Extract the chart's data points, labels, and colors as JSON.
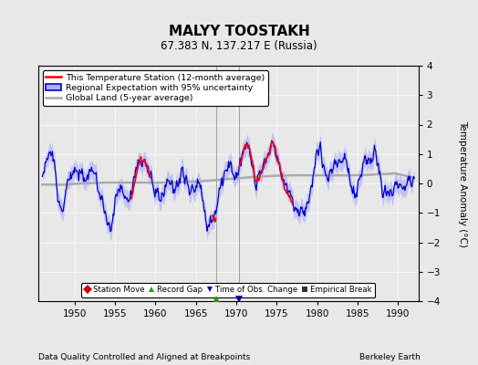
{
  "title": "MALYY TOOSTAKH",
  "subtitle": "67.383 N, 137.217 E (Russia)",
  "xlabel_bottom": "Data Quality Controlled and Aligned at Breakpoints",
  "xlabel_right": "Berkeley Earth",
  "ylabel_right": "Temperature Anomaly (°C)",
  "xmin": 1945.5,
  "xmax": 1992.5,
  "ymin": -4,
  "ymax": 4,
  "xticks": [
    1950,
    1955,
    1960,
    1965,
    1970,
    1975,
    1980,
    1985,
    1990
  ],
  "yticks": [
    -4,
    -3,
    -2,
    -1,
    0,
    1,
    2,
    3,
    4
  ],
  "legend_entries": [
    "This Temperature Station (12-month average)",
    "Regional Expectation with 95% uncertainty",
    "Global Land (5-year average)"
  ],
  "red_line_color": "#FF0000",
  "blue_line_color": "#0000CC",
  "blue_fill_color": "#AAAAFF",
  "gray_line_color": "#AAAAAA",
  "background_color": "#E8E8E8",
  "vline_color": "#888888",
  "vline_x": [
    1967.5,
    1970.3
  ],
  "marker_record_gap": {
    "color": "#00AA00",
    "marker": "^",
    "x": [
      1967.5
    ]
  },
  "marker_time_obs": {
    "color": "#0000AA",
    "marker": "v",
    "x": [
      1970.3
    ]
  },
  "red_segment1_end": 1959.5,
  "red_segment2_start": 1967.0,
  "red_segment2_end": 1967.5,
  "red_segment3_start": 1970.3,
  "seed": 12
}
